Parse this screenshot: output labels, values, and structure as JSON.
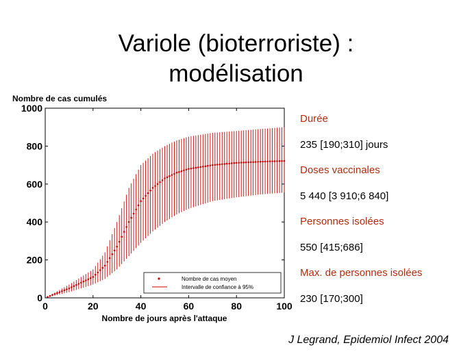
{
  "slide": {
    "title_line1": "Variole (bioterroriste) :",
    "title_line2": "modélisation",
    "citation": "J Legrand, Epidemiol Infect 2004"
  },
  "stats": [
    {
      "label": "Durée",
      "value": "235 [190;310] jours"
    },
    {
      "label": "Doses vaccinales",
      "value": "5 440 [3 910;6 840]"
    },
    {
      "label": "Personnes isolées",
      "value": "550 [415;686]"
    },
    {
      "label": "Max. de personnes isolées",
      "value": "230 [170;300]"
    }
  ],
  "colors": {
    "series": "#cc0000",
    "label": "#b22c0e"
  },
  "chart_data": {
    "type": "line",
    "ylabel": "Nombre de cas cumulés",
    "xlabel": "Nombre de jours après l'attaque",
    "xlim": [
      0,
      100
    ],
    "ylim": [
      0,
      1000
    ],
    "x_ticks": [
      0,
      20,
      40,
      60,
      80,
      100
    ],
    "y_ticks": [
      0,
      200,
      400,
      600,
      800,
      1000
    ],
    "grid": false,
    "legend_position": "bottom-right",
    "legend": [
      {
        "label": "Nombre de cas moyen",
        "marker": "dot"
      },
      {
        "label": "Intervalle de confiance à 95%",
        "marker": "line"
      }
    ],
    "x": [
      0,
      10,
      20,
      25,
      30,
      35,
      40,
      45,
      50,
      55,
      60,
      70,
      80,
      90,
      100
    ],
    "mean": [
      0,
      50,
      110,
      170,
      270,
      400,
      510,
      580,
      630,
      660,
      680,
      700,
      712,
      718,
      722
    ],
    "ci_low": [
      0,
      30,
      70,
      100,
      150,
      220,
      290,
      350,
      400,
      440,
      470,
      510,
      530,
      545,
      555
    ],
    "ci_high": [
      0,
      70,
      150,
      240,
      400,
      580,
      700,
      760,
      800,
      830,
      850,
      870,
      880,
      890,
      900
    ]
  }
}
